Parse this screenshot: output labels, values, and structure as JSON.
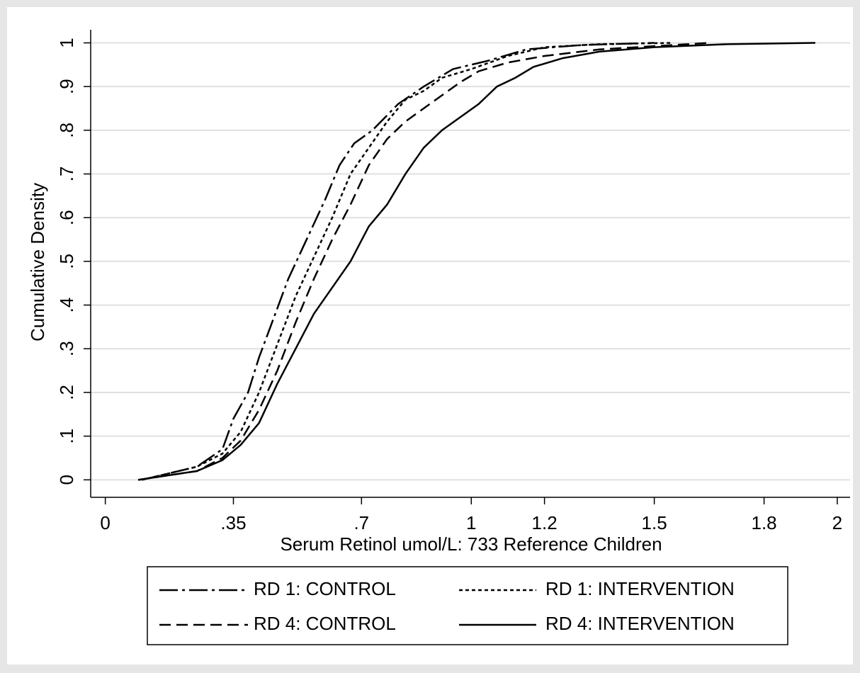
{
  "chart_data": {
    "type": "line",
    "x_label": "Serum Retinol umol/L: 733 Reference Children",
    "y_label": "Cumulative Density",
    "xlim": [
      -0.04,
      2.035
    ],
    "ylim": [
      -0.04,
      1.03
    ],
    "xticks": [
      0,
      {
        "value": 0.35,
        "label": ".35"
      },
      {
        "value": 0.7,
        "label": ".7"
      },
      1,
      1.2,
      1.5,
      1.8,
      2
    ],
    "yticks": [
      0,
      {
        "value": 0.1,
        "label": ".1"
      },
      {
        "value": 0.2,
        "label": ".2"
      },
      {
        "value": 0.3,
        "label": ".3"
      },
      {
        "value": 0.4,
        "label": ".4"
      },
      {
        "value": 0.5,
        "label": ".5"
      },
      {
        "value": 0.6,
        "label": ".6"
      },
      {
        "value": 0.7,
        "label": ".7"
      },
      {
        "value": 0.8,
        "label": ".8"
      },
      {
        "value": 0.9,
        "label": ".9"
      },
      1
    ],
    "grid": true,
    "legend": "bottom",
    "series": [
      {
        "name": "RD 1: CONTROL",
        "color": "#000000",
        "dash": "dashdot",
        "x": [
          0.1,
          0.25,
          0.32,
          0.35,
          0.39,
          0.42,
          0.46,
          0.5,
          0.55,
          0.6,
          0.64,
          0.68,
          0.73,
          0.8,
          0.87,
          0.95,
          1.05,
          1.15,
          1.3,
          1.5
        ],
        "values": [
          0,
          0.03,
          0.07,
          0.14,
          0.2,
          0.28,
          0.37,
          0.46,
          0.55,
          0.64,
          0.72,
          0.77,
          0.8,
          0.86,
          0.9,
          0.94,
          0.96,
          0.985,
          0.995,
          1
        ]
      },
      {
        "name": "RD 1: INTERVENTION",
        "color": "#000000",
        "dash": "dot",
        "x": [
          0.1,
          0.25,
          0.32,
          0.37,
          0.42,
          0.47,
          0.52,
          0.57,
          0.62,
          0.67,
          0.72,
          0.77,
          0.82,
          0.87,
          0.92,
          1.0,
          1.1,
          1.2,
          1.35,
          1.55
        ],
        "values": [
          0,
          0.03,
          0.06,
          0.11,
          0.2,
          0.31,
          0.42,
          0.51,
          0.6,
          0.7,
          0.76,
          0.82,
          0.87,
          0.89,
          0.92,
          0.94,
          0.97,
          0.99,
          0.997,
          1
        ]
      },
      {
        "name": "RD 4: CONTROL",
        "color": "#000000",
        "dash": "dash",
        "x": [
          0.09,
          0.25,
          0.32,
          0.37,
          0.42,
          0.47,
          0.52,
          0.57,
          0.62,
          0.67,
          0.72,
          0.77,
          0.82,
          0.87,
          0.92,
          0.97,
          1.02,
          1.1,
          1.2,
          1.35,
          1.55,
          1.65
        ],
        "values": [
          0,
          0.02,
          0.05,
          0.09,
          0.16,
          0.25,
          0.36,
          0.46,
          0.55,
          0.63,
          0.72,
          0.78,
          0.82,
          0.85,
          0.88,
          0.91,
          0.935,
          0.955,
          0.97,
          0.985,
          0.995,
          1
        ]
      },
      {
        "name": "RD 4: INTERVENTION",
        "color": "#000000",
        "dash": "solid",
        "x": [
          0.09,
          0.25,
          0.32,
          0.37,
          0.42,
          0.47,
          0.52,
          0.57,
          0.62,
          0.67,
          0.72,
          0.77,
          0.82,
          0.87,
          0.92,
          0.97,
          1.02,
          1.07,
          1.12,
          1.17,
          1.25,
          1.35,
          1.5,
          1.7,
          1.94
        ],
        "values": [
          0,
          0.02,
          0.045,
          0.08,
          0.13,
          0.22,
          0.3,
          0.38,
          0.44,
          0.5,
          0.58,
          0.63,
          0.7,
          0.76,
          0.8,
          0.83,
          0.86,
          0.9,
          0.92,
          0.945,
          0.965,
          0.98,
          0.99,
          0.997,
          1
        ]
      }
    ]
  }
}
